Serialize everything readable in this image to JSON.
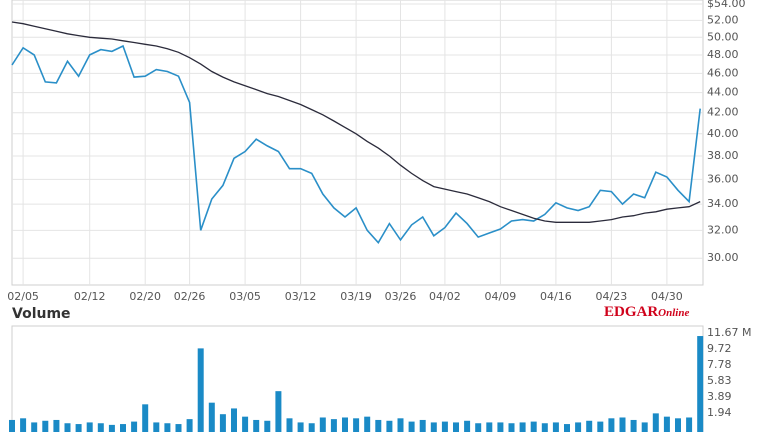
{
  "chart_data": [
    {
      "type": "line",
      "log_scale": true,
      "grid": true,
      "categories": [
        null,
        "02/05",
        null,
        null,
        null,
        null,
        null,
        "02/12",
        null,
        null,
        null,
        null,
        "02/20",
        null,
        null,
        null,
        "02/26",
        null,
        null,
        null,
        null,
        "03/05",
        null,
        null,
        null,
        null,
        "03/12",
        null,
        null,
        null,
        null,
        "03/19",
        null,
        null,
        null,
        "03/26",
        null,
        null,
        null,
        "04/02",
        null,
        null,
        null,
        null,
        "04/09",
        null,
        null,
        null,
        null,
        "04/16",
        null,
        null,
        null,
        null,
        "04/23",
        null,
        null,
        null,
        null,
        "04/30",
        null,
        null,
        null
      ],
      "series": [
        {
          "color": "#2a8fc8",
          "values": [
            46.9,
            48.8,
            48.0,
            45.1,
            45.0,
            47.3,
            45.7,
            48.0,
            48.6,
            48.4,
            49.0,
            45.6,
            45.7,
            46.4,
            46.2,
            45.7,
            43.0,
            32.0,
            34.4,
            35.5,
            37.8,
            38.4,
            39.5,
            38.9,
            38.4,
            36.9,
            36.9,
            36.5,
            34.8,
            33.7,
            33.0,
            33.7,
            32.0,
            31.1,
            32.5,
            31.3,
            32.4,
            33.0,
            31.6,
            32.2,
            33.3,
            32.5,
            31.5,
            31.8,
            32.1,
            32.7,
            32.8,
            32.7,
            33.2,
            34.1,
            33.7,
            33.5,
            33.8,
            35.1,
            35.0,
            34.0,
            34.8,
            34.5,
            36.6,
            36.2,
            35.1,
            34.2,
            42.4
          ]
        },
        {
          "color": "#2b2b3b",
          "values": [
            51.8,
            51.6,
            51.3,
            51.0,
            50.7,
            50.4,
            50.2,
            50.0,
            49.9,
            49.8,
            49.6,
            49.4,
            49.2,
            49.0,
            48.7,
            48.3,
            47.7,
            47.0,
            46.2,
            45.6,
            45.1,
            44.7,
            44.3,
            43.9,
            43.6,
            43.2,
            42.8,
            42.3,
            41.8,
            41.2,
            40.6,
            40.0,
            39.3,
            38.7,
            38.0,
            37.2,
            36.5,
            35.9,
            35.4,
            35.2,
            35.0,
            34.8,
            34.5,
            34.2,
            33.8,
            33.5,
            33.2,
            32.9,
            32.7,
            32.6,
            32.6,
            32.6,
            32.6,
            32.7,
            32.8,
            33.0,
            33.1,
            33.3,
            33.4,
            33.6,
            33.7,
            33.8,
            34.2
          ]
        }
      ],
      "ylim": [
        28.2,
        54
      ],
      "yticks": [
        {
          "value": 54,
          "label": "$54.00"
        },
        {
          "value": 52,
          "label": "52.00"
        },
        {
          "value": 50,
          "label": "50.00"
        },
        {
          "value": 48,
          "label": "48.00"
        },
        {
          "value": 46,
          "label": "46.00"
        },
        {
          "value": 44,
          "label": "44.00"
        },
        {
          "value": 42,
          "label": "42.00"
        },
        {
          "value": 40,
          "label": "40.00"
        },
        {
          "value": 38,
          "label": "38.00"
        },
        {
          "value": 36,
          "label": "36.00"
        },
        {
          "value": 34,
          "label": "34.00"
        },
        {
          "value": 32,
          "label": "32.00"
        },
        {
          "value": 30,
          "label": "30.00"
        }
      ]
    },
    {
      "type": "bar",
      "title": "Volume",
      "brand": "EDGAR",
      "brand_suffix": "Online",
      "color": "#1a8ac6",
      "values": [
        1.1,
        1.3,
        0.8,
        1.0,
        1.1,
        0.7,
        0.6,
        0.8,
        0.7,
        0.5,
        0.6,
        0.9,
        3.0,
        0.8,
        0.7,
        0.6,
        1.2,
        9.8,
        3.2,
        1.8,
        2.5,
        1.5,
        1.1,
        1.0,
        4.6,
        1.3,
        0.8,
        0.7,
        1.4,
        1.2,
        1.4,
        1.3,
        1.5,
        1.1,
        1.0,
        1.3,
        0.9,
        1.1,
        0.8,
        0.9,
        0.8,
        1.0,
        0.7,
        0.8,
        0.8,
        0.7,
        0.8,
        0.9,
        0.7,
        0.8,
        0.6,
        0.8,
        1.0,
        0.9,
        1.3,
        1.4,
        1.1,
        0.8,
        1.9,
        1.5,
        1.3,
        1.4,
        11.3
      ],
      "ylim": [
        0,
        11.67
      ],
      "yticks": [
        1.94,
        3.89,
        5.83,
        7.78,
        9.72,
        {
          "value": 11.67,
          "label": "11.67 M"
        }
      ]
    }
  ]
}
